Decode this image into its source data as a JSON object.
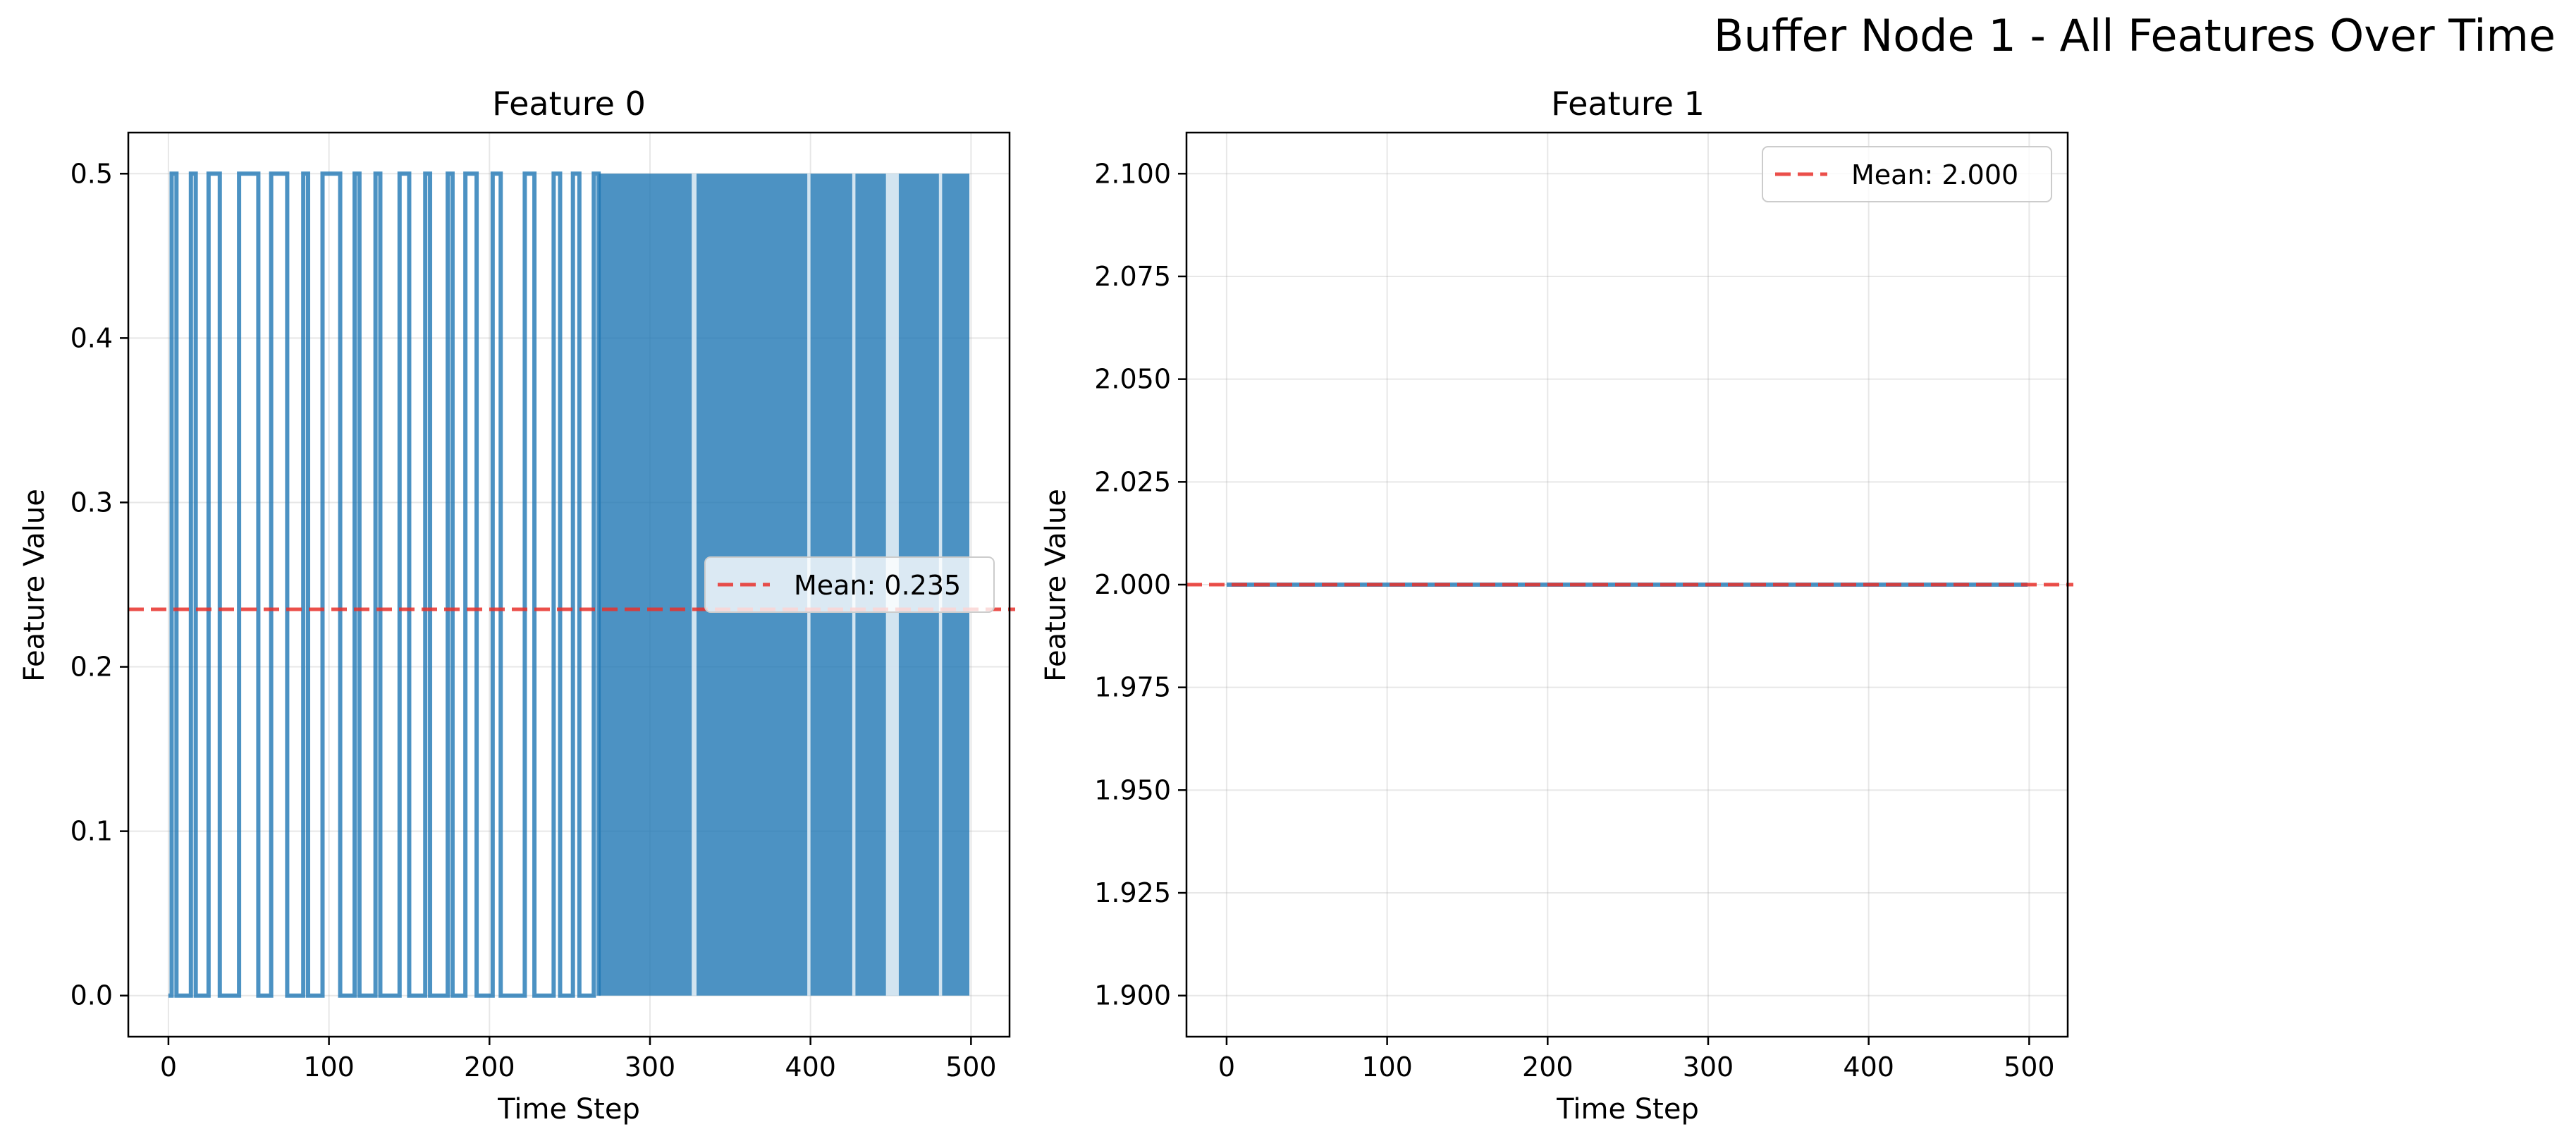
{
  "suptitle": "Buffer Node 1 - All Features Over Time",
  "colors": {
    "series": "#1f77b4",
    "mean": "#e8302a",
    "grid": "#b0b0b0",
    "axis": "#000000"
  },
  "chart_data": [
    {
      "type": "line",
      "title": "Feature 0",
      "xlabel": "Time Step",
      "ylabel": "Feature Value",
      "xlim": [
        -25,
        524
      ],
      "ylim": [
        -0.025,
        0.525
      ],
      "xticks": [
        0,
        100,
        200,
        300,
        400,
        500
      ],
      "yticks": [
        0.0,
        0.1,
        0.2,
        0.3,
        0.4,
        0.5
      ],
      "ytick_labels": [
        "0.0",
        "0.1",
        "0.2",
        "0.3",
        "0.4",
        "0.5"
      ],
      "grid": true,
      "legend_position": "center-right",
      "series": [
        {
          "values_description_free": true,
          "pattern": "binary square wave between 0.0 and 0.5",
          "low": 0.0,
          "high": 0.5,
          "high_intervals": [
            [
              2,
              5
            ],
            [
              14,
              17
            ],
            [
              25,
              32
            ],
            [
              44,
              56
            ],
            [
              64,
              74
            ],
            [
              84,
              87
            ],
            [
              96,
              107
            ],
            [
              116,
              119
            ],
            [
              129,
              132
            ],
            [
              144,
              150
            ],
            [
              160,
              163
            ],
            [
              174,
              177
            ],
            [
              185,
              192
            ],
            [
              202,
              207
            ],
            [
              222,
              228
            ],
            [
              240,
              244
            ],
            [
              252,
              256
            ],
            [
              265,
              268
            ]
          ],
          "dense_from": 268,
          "x_end": 499
        }
      ],
      "mean": {
        "value": 0.235,
        "label": "Mean: 0.235"
      }
    },
    {
      "type": "line",
      "title": "Feature 1",
      "xlabel": "Time Step",
      "ylabel": "Feature Value",
      "xlim": [
        -25,
        524
      ],
      "ylim": [
        1.89,
        2.11
      ],
      "xticks": [
        0,
        100,
        200,
        300,
        400,
        500
      ],
      "yticks": [
        1.9,
        1.925,
        1.95,
        1.975,
        2.0,
        2.025,
        2.05,
        2.075,
        2.1
      ],
      "ytick_labels": [
        "1.900",
        "1.925",
        "1.950",
        "1.975",
        "2.000",
        "2.025",
        "2.050",
        "2.075",
        "2.100"
      ],
      "grid": true,
      "legend_position": "top-right",
      "series": [
        {
          "constant": 2.0,
          "x_start": 0,
          "x_end": 499
        }
      ],
      "mean": {
        "value": 2.0,
        "label": "Mean: 2.000"
      }
    }
  ]
}
